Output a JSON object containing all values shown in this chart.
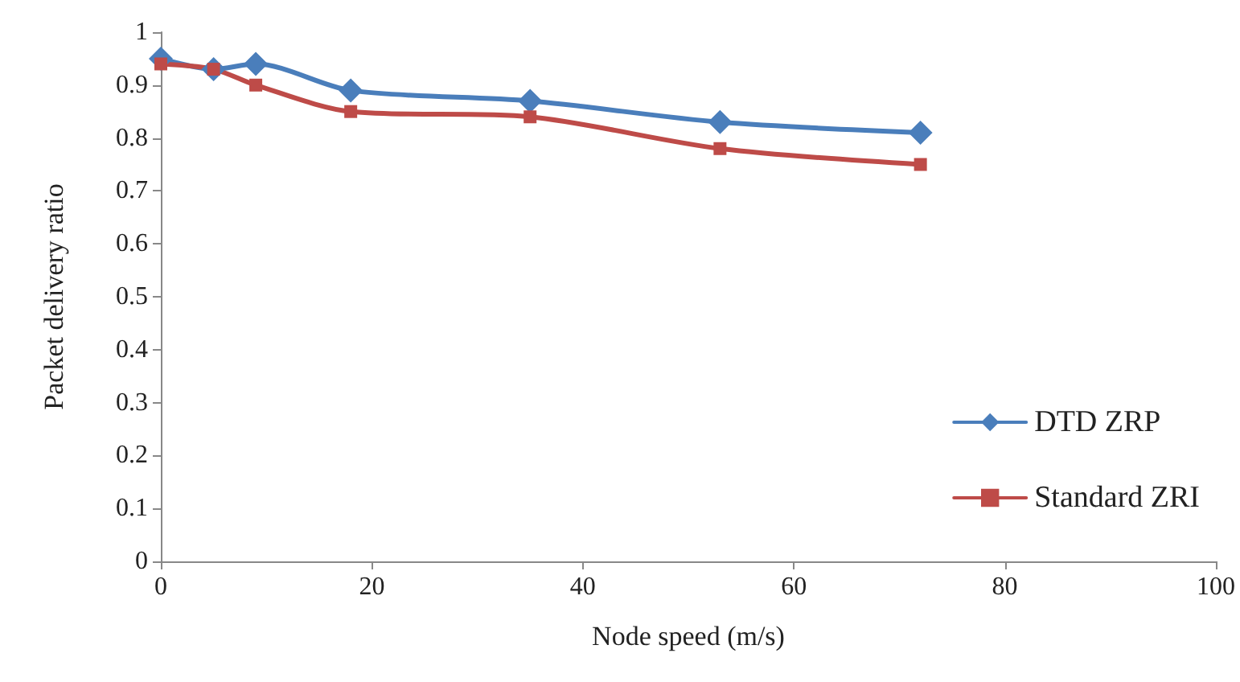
{
  "chart_data": {
    "type": "line",
    "xlabel": "Node speed (m/s)",
    "ylabel": "Packet delivery ratio",
    "x": [
      0,
      5,
      9,
      18,
      35,
      53,
      72
    ],
    "series": [
      {
        "name": "DTD ZRP",
        "color": "#4a7ebb",
        "marker": "diamond",
        "values": [
          0.95,
          0.93,
          0.94,
          0.89,
          0.87,
          0.83,
          0.81
        ]
      },
      {
        "name": "Standard ZRI",
        "color": "#be4b48",
        "marker": "square",
        "values": [
          0.94,
          0.93,
          0.9,
          0.85,
          0.84,
          0.78,
          0.75
        ]
      }
    ],
    "xlim": [
      0,
      100
    ],
    "xticks": [
      0,
      20,
      40,
      60,
      80,
      100
    ],
    "ylim": [
      0,
      1
    ],
    "yticks": [
      0,
      0.1,
      0.2,
      0.3,
      0.4,
      0.5,
      0.6,
      0.7,
      0.8,
      0.9,
      1
    ],
    "grid": false,
    "legend": "right",
    "line_style": "solid"
  }
}
